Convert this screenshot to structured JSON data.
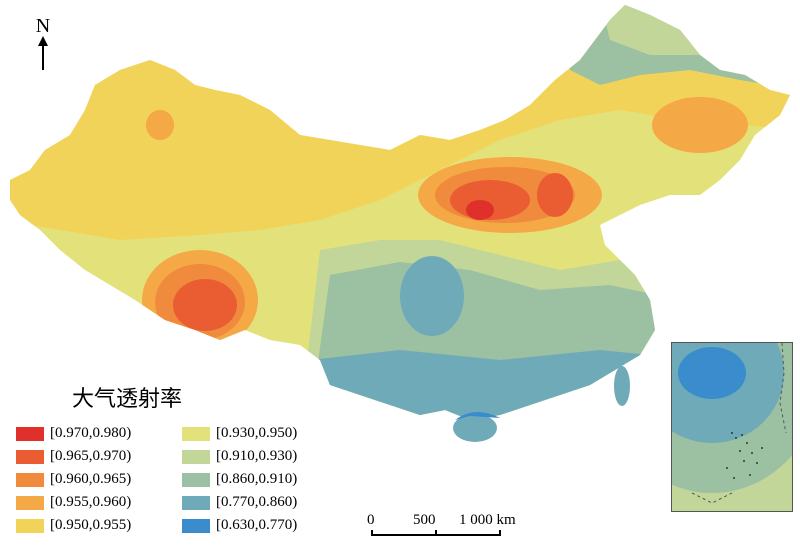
{
  "north_label": "N",
  "legend": {
    "title": "大气透射率",
    "items": [
      {
        "label": "[0.970,0.980)",
        "color": "#e0302c"
      },
      {
        "label": "[0.965,0.970)",
        "color": "#ea5c32"
      },
      {
        "label": "[0.960,0.965)",
        "color": "#f08a3c"
      },
      {
        "label": "[0.955,0.960)",
        "color": "#f4a846"
      },
      {
        "label": "[0.950,0.955)",
        "color": "#f2d35a"
      },
      {
        "label": "[0.930,0.950)",
        "color": "#e3e27a"
      },
      {
        "label": "[0.910,0.930)",
        "color": "#c2d69a"
      },
      {
        "label": "[0.860,0.910)",
        "color": "#9cc0a2"
      },
      {
        "label": "[0.770,0.860)",
        "color": "#6faab8"
      },
      {
        "label": "[0.630,0.770)",
        "color": "#3b8ccd"
      }
    ]
  },
  "scale_bar": {
    "labels": [
      "0",
      "500",
      "1 000 km"
    ]
  }
}
